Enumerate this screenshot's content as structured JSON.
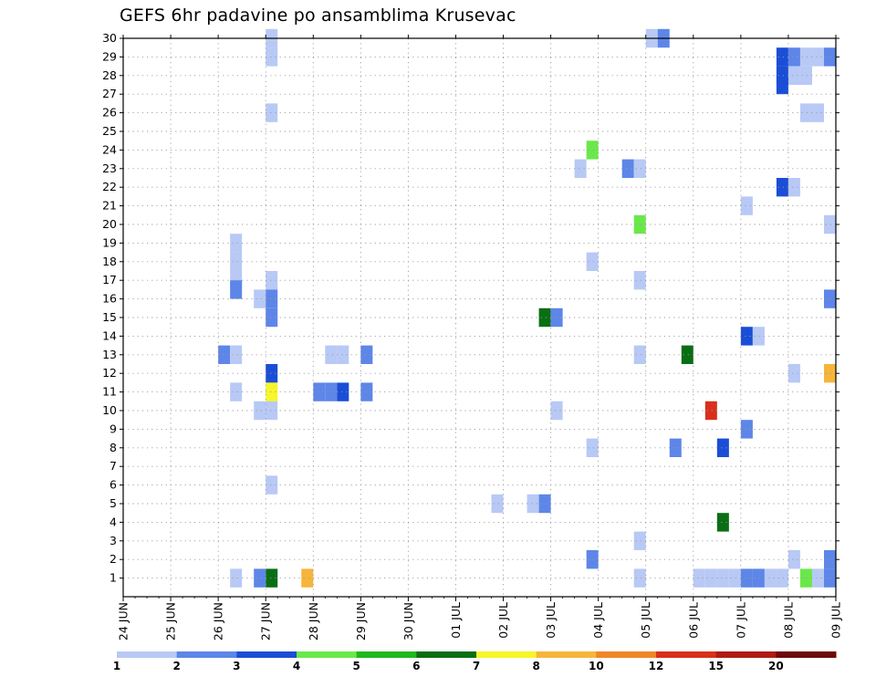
{
  "chart_data": {
    "type": "heatmap",
    "title": "GEFS 6hr padavine po ansamblima Krusevac",
    "xlabel": "",
    "ylabel": "",
    "x_ticks": [
      "24 JUN",
      "25 JUN",
      "26 JUN",
      "27 JUN",
      "28 JUN",
      "29 JUN",
      "30 JUN",
      "01 JUL",
      "02 JUL",
      "03 JUL",
      "04 JUL",
      "05 JUL",
      "06 JUL",
      "07 JUL",
      "08 JUL",
      "09 JUL"
    ],
    "y_ticks": [
      "1",
      "2",
      "3",
      "4",
      "5",
      "6",
      "7",
      "8",
      "9",
      "10",
      "11",
      "12",
      "13",
      "14",
      "15",
      "16",
      "17",
      "18",
      "19",
      "20",
      "21",
      "22",
      "23",
      "24",
      "25",
      "26",
      "27",
      "28",
      "29",
      "30"
    ],
    "x_axis": "forecast time in 6-hour steps, 0 = 24 JUN 00, 60 = 09 JUL 00",
    "y_axis": "ensemble member (0 = control)",
    "xlim": [
      0,
      60
    ],
    "ylim": [
      0,
      30
    ],
    "grid": true,
    "legend_position": "bottom",
    "legend": {
      "colors": [
        "#b8c9f5",
        "#5d86e8",
        "#1b4ed6",
        "#6ae84a",
        "#1fb81f",
        "#0a6e14",
        "#f6f62a",
        "#f6b53a",
        "#f08628",
        "#d8301a",
        "#b01a14",
        "#6e0a0a"
      ],
      "labels": [
        "1",
        "2",
        "3",
        "4",
        "5",
        "6",
        "7",
        "8",
        "10",
        "12",
        "15",
        "20"
      ]
    },
    "cells": [
      [
        12.5,
        30,
        0
      ],
      [
        44.5,
        30,
        0
      ],
      [
        45.5,
        30,
        1
      ],
      [
        12.5,
        29,
        0
      ],
      [
        55.5,
        29,
        2
      ],
      [
        56.5,
        29,
        1
      ],
      [
        57.5,
        29,
        0
      ],
      [
        58.5,
        29,
        0
      ],
      [
        59.5,
        29,
        1
      ],
      [
        55.5,
        28,
        2
      ],
      [
        56.5,
        28,
        0
      ],
      [
        57.5,
        28,
        0
      ],
      [
        55.5,
        27.5,
        2
      ],
      [
        12.5,
        26,
        0
      ],
      [
        57.5,
        26,
        0
      ],
      [
        58.5,
        26,
        0
      ],
      [
        39.5,
        24,
        3
      ],
      [
        38.5,
        23,
        0
      ],
      [
        42.5,
        23,
        1
      ],
      [
        43.5,
        23,
        0
      ],
      [
        55.5,
        22,
        2
      ],
      [
        56.5,
        22,
        0
      ],
      [
        52.5,
        21,
        0
      ],
      [
        43.5,
        20,
        3
      ],
      [
        59.5,
        20,
        0
      ],
      [
        9.5,
        19,
        0
      ],
      [
        9.5,
        18,
        0
      ],
      [
        9.5,
        17,
        0
      ],
      [
        9.5,
        16.5,
        1
      ],
      [
        12.5,
        17,
        0
      ],
      [
        39.5,
        18,
        0
      ],
      [
        43.5,
        17,
        0
      ],
      [
        11.5,
        16,
        0
      ],
      [
        12.5,
        16,
        1
      ],
      [
        12.5,
        15,
        1
      ],
      [
        59.5,
        16,
        1
      ],
      [
        35.5,
        15,
        5
      ],
      [
        36.5,
        15,
        1
      ],
      [
        52.5,
        14,
        2
      ],
      [
        53.5,
        14,
        0
      ],
      [
        8.5,
        13,
        1
      ],
      [
        9.5,
        13,
        0
      ],
      [
        17.5,
        13,
        0
      ],
      [
        18.5,
        13,
        0
      ],
      [
        20.5,
        13,
        1
      ],
      [
        43.5,
        13,
        0
      ],
      [
        47.5,
        13,
        5
      ],
      [
        12.5,
        12,
        2
      ],
      [
        56.5,
        12,
        0
      ],
      [
        59.5,
        12,
        7
      ],
      [
        9.5,
        11,
        0
      ],
      [
        12.5,
        11,
        6
      ],
      [
        16.5,
        11,
        1
      ],
      [
        17.5,
        11,
        1
      ],
      [
        18.5,
        11,
        2
      ],
      [
        20.5,
        11,
        1
      ],
      [
        11.5,
        10,
        0
      ],
      [
        12.5,
        10,
        0
      ],
      [
        36.5,
        10,
        0
      ],
      [
        49.5,
        10,
        9
      ],
      [
        52.5,
        9,
        1
      ],
      [
        39.5,
        8,
        0
      ],
      [
        46.5,
        8,
        1
      ],
      [
        50.5,
        8,
        2
      ],
      [
        12.5,
        6,
        0
      ],
      [
        31.5,
        5,
        0
      ],
      [
        34.5,
        5,
        0
      ],
      [
        35.5,
        5,
        1
      ],
      [
        50.5,
        4,
        5
      ],
      [
        43.5,
        3,
        0
      ],
      [
        39.5,
        2,
        1
      ],
      [
        56.5,
        2,
        0
      ],
      [
        59.5,
        2,
        1
      ],
      [
        9.5,
        1,
        0
      ],
      [
        11.5,
        1,
        1
      ],
      [
        12.5,
        1,
        5
      ],
      [
        15.5,
        1,
        7
      ],
      [
        43.5,
        1,
        0
      ],
      [
        48.5,
        1,
        0
      ],
      [
        49.5,
        1,
        0
      ],
      [
        50.5,
        1,
        0
      ],
      [
        51.5,
        1,
        0
      ],
      [
        52.5,
        1,
        1
      ],
      [
        53.5,
        1,
        1
      ],
      [
        54.5,
        1,
        0
      ],
      [
        55.5,
        1,
        0
      ],
      [
        57.5,
        1,
        3
      ],
      [
        58.5,
        1,
        0
      ],
      [
        59.5,
        1,
        1
      ]
    ]
  }
}
